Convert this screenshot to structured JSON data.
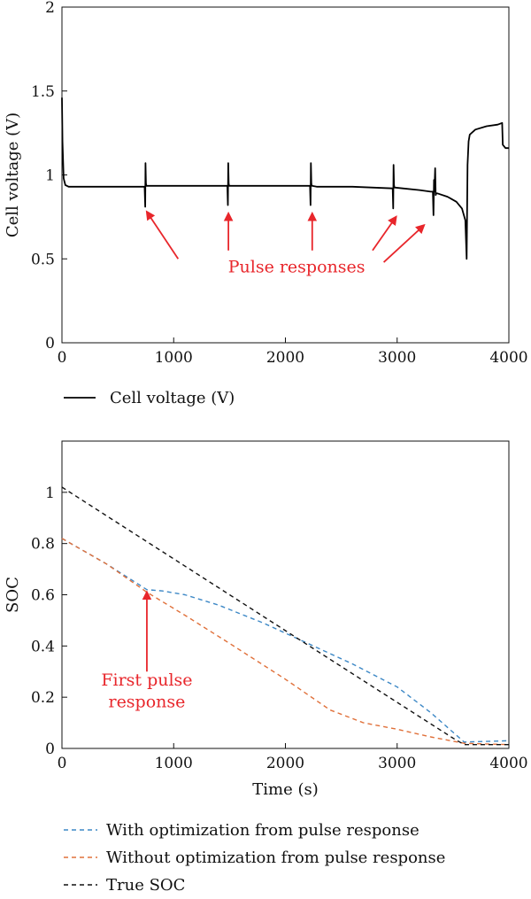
{
  "chart_data": [
    {
      "type": "line",
      "ylabel": "Cell voltage (V)",
      "xlim": [
        0,
        4000
      ],
      "ylim": [
        0,
        2
      ],
      "xticks": [
        "0",
        "1000",
        "2000",
        "3000",
        "4000"
      ],
      "yticks": [
        "0",
        "0.5",
        "1",
        "1.5",
        "2"
      ],
      "grid": false,
      "legend_position": "below",
      "series": [
        {
          "name": "Cell voltage (V)",
          "color": "#000000",
          "dash": "solid",
          "x": [
            0,
            5,
            15,
            30,
            60,
            400,
            740,
            745,
            748,
            752,
            756,
            800,
            1100,
            1480,
            1485,
            1488,
            1492,
            1496,
            1540,
            1900,
            2220,
            2225,
            2228,
            2232,
            2236,
            2280,
            2600,
            2960,
            2965,
            2968,
            2972,
            2976,
            3050,
            3200,
            3300,
            3320,
            3325,
            3330,
            3333,
            3340,
            3345,
            3350,
            3360,
            3450,
            3530,
            3580,
            3610,
            3622,
            3630,
            3640,
            3650,
            3700,
            3800,
            3900,
            3940,
            3945,
            3970,
            4000
          ],
          "y": [
            1.46,
            1.2,
            0.98,
            0.94,
            0.93,
            0.93,
            0.93,
            0.81,
            1.07,
            0.95,
            0.935,
            0.935,
            0.935,
            0.935,
            0.82,
            1.07,
            0.95,
            0.935,
            0.935,
            0.935,
            0.935,
            0.82,
            1.07,
            0.95,
            0.935,
            0.93,
            0.93,
            0.92,
            0.8,
            1.06,
            0.94,
            0.925,
            0.92,
            0.91,
            0.9,
            0.9,
            0.76,
            0.97,
            0.9,
            1.04,
            0.88,
            0.89,
            0.89,
            0.87,
            0.84,
            0.8,
            0.73,
            0.5,
            1.06,
            1.2,
            1.24,
            1.27,
            1.29,
            1.3,
            1.31,
            1.18,
            1.16,
            1.16
          ]
        }
      ],
      "annotations": [
        {
          "text": "Pulse responses",
          "x": 2100,
          "y": 0.42
        }
      ],
      "arrows": [
        {
          "from": [
            1040,
            0.5
          ],
          "to": [
            760,
            0.78
          ]
        },
        {
          "from": [
            1490,
            0.55
          ],
          "to": [
            1490,
            0.77
          ]
        },
        {
          "from": [
            2240,
            0.55
          ],
          "to": [
            2240,
            0.77
          ]
        },
        {
          "from": [
            2780,
            0.55
          ],
          "to": [
            2990,
            0.75
          ]
        },
        {
          "from": [
            2880,
            0.48
          ],
          "to": [
            3240,
            0.7
          ]
        }
      ]
    },
    {
      "type": "line",
      "xlabel": "Time (s)",
      "ylabel": "SOC",
      "xlim": [
        0,
        4000
      ],
      "ylim": [
        0,
        1.2
      ],
      "xticks": [
        "0",
        "1000",
        "2000",
        "3000",
        "4000"
      ],
      "yticks": [
        "0",
        "0.2",
        "0.4",
        "0.6",
        "0.8",
        "1"
      ],
      "grid": false,
      "legend_position": "below",
      "series": [
        {
          "name": "With optimization from pulse response",
          "color": "#3d88c6",
          "dash": "dashed",
          "x": [
            0,
            400,
            760,
            900,
            1100,
            1400,
            1800,
            2200,
            2600,
            3000,
            3300,
            3600,
            4000
          ],
          "y": [
            0.82,
            0.72,
            0.62,
            0.615,
            0.6,
            0.56,
            0.49,
            0.41,
            0.33,
            0.24,
            0.14,
            0.025,
            0.03
          ]
        },
        {
          "name": "Without optimization from pulse response",
          "color": "#e0703a",
          "dash": "dashed",
          "x": [
            0,
            400,
            760,
            1100,
            1500,
            2000,
            2400,
            2700,
            3000,
            3300,
            3600,
            4000
          ],
          "y": [
            0.82,
            0.72,
            0.61,
            0.52,
            0.41,
            0.27,
            0.15,
            0.1,
            0.075,
            0.045,
            0.02,
            0.015
          ]
        },
        {
          "name": "True SOC",
          "color": "#111111",
          "dash": "dashed",
          "x": [
            0,
            500,
            1000,
            1500,
            2000,
            2500,
            3000,
            3500,
            3600,
            4000
          ],
          "y": [
            1.02,
            0.88,
            0.74,
            0.6,
            0.46,
            0.32,
            0.18,
            0.04,
            0.015,
            0.015
          ]
        }
      ],
      "annotations": [
        {
          "text": "First pulse",
          "x": 760,
          "y": 0.245
        },
        {
          "text": "response",
          "x": 760,
          "y": 0.16
        }
      ],
      "arrows": [
        {
          "from": [
            760,
            0.3
          ],
          "to": [
            760,
            0.61
          ]
        }
      ]
    }
  ]
}
